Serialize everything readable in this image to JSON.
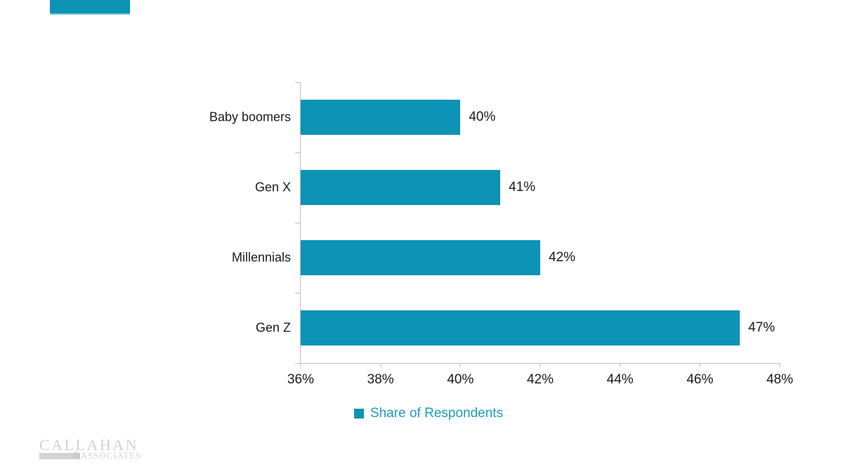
{
  "chart_data": {
    "type": "bar",
    "orientation": "horizontal",
    "categories": [
      "Baby boomers",
      "Gen X",
      "Millennials",
      "Gen Z"
    ],
    "values": [
      40,
      41,
      42,
      47
    ],
    "value_labels": [
      "40%",
      "41%",
      "42%",
      "47%"
    ],
    "series": [
      {
        "name": "Share of Respondents",
        "values": [
          40,
          41,
          42,
          47
        ]
      }
    ],
    "xlim": [
      36,
      48
    ],
    "xticks": [
      "36%",
      "38%",
      "40%",
      "42%",
      "44%",
      "46%",
      "48%"
    ],
    "grid": false,
    "legend_position": "bottom",
    "title": ""
  },
  "legend": {
    "label": "Share of Respondents"
  },
  "logo": {
    "line1": "CALLAHAN",
    "ampersand": "&",
    "line2": "ASSOCIATES"
  },
  "colors": {
    "series": "#0D93B5",
    "legend_text": "#1F9CC2",
    "axis": "#BFBFBF",
    "label_text": "#1A1A1A",
    "logo_gray": "#D2D2D2"
  }
}
